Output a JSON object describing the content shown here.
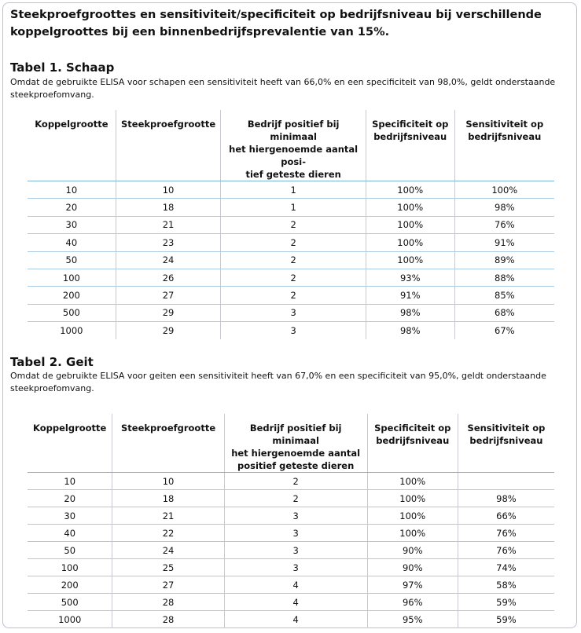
{
  "header": {
    "title_lines": [
      "Steekproefgroottes en sensitiviteit/specificiteit op bedrijfsniveau bij verschillende",
      "koppelgroottes bij een binnenbedrijfsprevalentie van 15%."
    ]
  },
  "tables": [
    {
      "title": "Tabel 1. Schaap",
      "description_lines": [
        "Omdat de gebruikte ELISA voor schapen een sensitiviteit heeft van 66,0% en een specificiteit van 98,0%, geldt onderstaande",
        "steekproefomvang."
      ],
      "columns": [
        [
          "Koppelgrootte"
        ],
        [
          "Steekproefgrootte"
        ],
        [
          "Bedrijf positief bij minimaal",
          "het hiergenoemde aantal posi-",
          "tief geteste dieren"
        ],
        [
          "Specificiteit op",
          "bedrijfsniveau"
        ],
        [
          "Sensitiviteit op",
          "bedrijfsniveau"
        ]
      ],
      "rows": [
        [
          "10",
          "10",
          "1",
          "100%",
          "100%"
        ],
        [
          "20",
          "18",
          "1",
          "100%",
          "98%"
        ],
        [
          "30",
          "21",
          "2",
          "100%",
          "76%"
        ],
        [
          "40",
          "23",
          "2",
          "100%",
          "91%"
        ],
        [
          "50",
          "24",
          "2",
          "100%",
          "89%"
        ],
        [
          "100",
          "26",
          "2",
          "93%",
          "88%"
        ],
        [
          "200",
          "27",
          "2",
          "91%",
          "85%"
        ],
        [
          "500",
          "29",
          "3",
          "98%",
          "68%"
        ],
        [
          "1000",
          "29",
          "3",
          "98%",
          "67%"
        ]
      ]
    },
    {
      "title": "Tabel 2. Geit",
      "description_lines": [
        "Omdat de gebruikte ELISA voor geiten een sensitiviteit heeft van 67,0% en een specificiteit van 95,0%, geldt onderstaande",
        "steekproefomvang."
      ],
      "columns": [
        [
          "Koppelgrootte"
        ],
        [
          "Steekproefgrootte"
        ],
        [
          "Bedrijf positief bij minimaal",
          "het hiergenoemde aantal",
          "positief geteste dieren"
        ],
        [
          "Specificiteit op",
          "bedrijfsniveau"
        ],
        [
          "Sensitiviteit op",
          "bedrijfsniveau"
        ]
      ],
      "rows": [
        [
          "10",
          "10",
          "2",
          "100%",
          null
        ],
        [
          "20",
          "18",
          "2",
          "100%",
          "98%"
        ],
        [
          "30",
          "21",
          "3",
          "100%",
          "66%"
        ],
        [
          "40",
          "22",
          "3",
          "100%",
          "76%"
        ],
        [
          "50",
          "24",
          "3",
          "90%",
          "76%"
        ],
        [
          "100",
          "25",
          "3",
          "90%",
          "74%"
        ],
        [
          "200",
          "27",
          "4",
          "97%",
          "58%"
        ],
        [
          "500",
          "28",
          "4",
          "96%",
          "59%"
        ],
        [
          "1000",
          "28",
          "4",
          "95%",
          "59%"
        ]
      ]
    }
  ]
}
